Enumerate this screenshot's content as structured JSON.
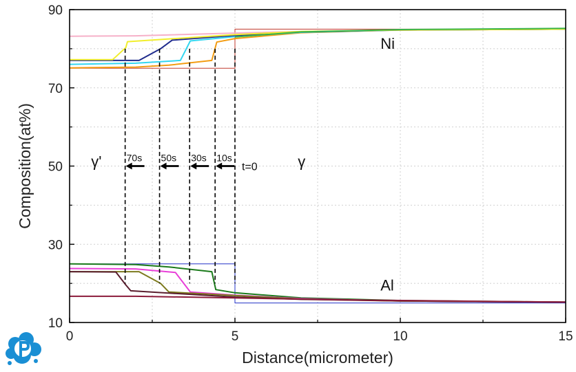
{
  "chart_data": {
    "type": "line",
    "title": "",
    "xlabel": "Distance(micrometer)",
    "ylabel": "Composition(at%)",
    "xlim": [
      0,
      15
    ],
    "ylim": [
      10,
      90
    ],
    "xticks": [
      0,
      5,
      10,
      15
    ],
    "yticks": [
      10,
      30,
      50,
      70,
      90
    ],
    "grid": true,
    "logo_colors": {
      "primary": "#1a8fd4"
    },
    "series": [
      {
        "group": "Ni",
        "time": "t=0",
        "color": "#c0392b",
        "style": "step",
        "points": [
          [
            0,
            75
          ],
          [
            5,
            75
          ],
          [
            5,
            85
          ],
          [
            15,
            85
          ]
        ]
      },
      {
        "group": "Ni",
        "time": "t=0",
        "color": "#f6b0c8",
        "style": "line",
        "points": [
          [
            0,
            83.2
          ],
          [
            2,
            83.3
          ],
          [
            5,
            84.0
          ],
          [
            8,
            84.6
          ],
          [
            15,
            85
          ]
        ]
      },
      {
        "group": "Ni",
        "time": "10s",
        "color": "#f39c12",
        "points": [
          [
            0,
            75.1
          ],
          [
            2,
            75.3
          ],
          [
            3,
            75.8
          ],
          [
            4.3,
            77.0
          ],
          [
            4.45,
            81.7
          ],
          [
            5,
            82.6
          ],
          [
            7,
            84.1
          ],
          [
            10,
            84.8
          ],
          [
            15,
            85
          ]
        ]
      },
      {
        "group": "Ni",
        "time": "30s",
        "color": "#33d6f0",
        "points": [
          [
            0,
            76.0
          ],
          [
            2,
            76.3
          ],
          [
            3.35,
            77.0
          ],
          [
            3.65,
            82.0
          ],
          [
            5,
            83.1
          ],
          [
            7,
            84.2
          ],
          [
            10,
            84.8
          ],
          [
            15,
            85
          ]
        ]
      },
      {
        "group": "Ni",
        "time": "50s",
        "color": "#1f2b8c",
        "points": [
          [
            0,
            77.0
          ],
          [
            2.1,
            77.0
          ],
          [
            2.75,
            80.0
          ],
          [
            3.1,
            82.2
          ],
          [
            5,
            83.4
          ],
          [
            7,
            84.3
          ],
          [
            10,
            84.8
          ],
          [
            15,
            85
          ]
        ]
      },
      {
        "group": "Ni",
        "time": "70s",
        "color": "#f1ee2b",
        "points": [
          [
            0,
            77.2
          ],
          [
            1.3,
            77.2
          ],
          [
            1.7,
            80.3
          ],
          [
            1.75,
            81.8
          ],
          [
            5,
            83.6
          ],
          [
            7,
            84.4
          ],
          [
            10,
            84.8
          ],
          [
            15,
            85
          ]
        ]
      },
      {
        "group": "Ni",
        "time": "",
        "color": "#39b34a",
        "points": [
          [
            5,
            83.0
          ],
          [
            7,
            84.3
          ],
          [
            10,
            84.9
          ],
          [
            15,
            85.2
          ]
        ]
      },
      {
        "group": "Al",
        "time": "t=0",
        "color": "#2230c8",
        "style": "step",
        "points": [
          [
            0,
            25
          ],
          [
            5,
            25
          ],
          [
            5,
            15
          ],
          [
            15,
            15
          ]
        ]
      },
      {
        "group": "Al",
        "time": "10s",
        "color": "#1a7a1a",
        "points": [
          [
            0,
            25.0
          ],
          [
            2,
            24.8
          ],
          [
            3,
            24.2
          ],
          [
            4.3,
            23.0
          ],
          [
            4.42,
            18.4
          ],
          [
            5,
            17.6
          ],
          [
            7,
            16.3
          ],
          [
            10,
            15.6
          ],
          [
            15,
            15.2
          ]
        ]
      },
      {
        "group": "Al",
        "time": "30s",
        "color": "#e83fd8",
        "points": [
          [
            0,
            23.8
          ],
          [
            2,
            23.7
          ],
          [
            3.2,
            22.8
          ],
          [
            3.65,
            17.8
          ],
          [
            5,
            17.0
          ],
          [
            7,
            16.1
          ],
          [
            10,
            15.5
          ],
          [
            15,
            15.2
          ]
        ]
      },
      {
        "group": "Al",
        "time": "50s",
        "color": "#7d7a1e",
        "points": [
          [
            0,
            23.0
          ],
          [
            2.1,
            23.0
          ],
          [
            2.75,
            20.0
          ],
          [
            3.0,
            17.8
          ],
          [
            5,
            16.9
          ],
          [
            7,
            16.0
          ],
          [
            10,
            15.5
          ],
          [
            15,
            15.2
          ]
        ]
      },
      {
        "group": "Al",
        "time": "70s",
        "color": "#5a1e2e",
        "points": [
          [
            0,
            23.0
          ],
          [
            1.4,
            22.9
          ],
          [
            1.7,
            19.6
          ],
          [
            1.85,
            18.1
          ],
          [
            5,
            16.5
          ],
          [
            7,
            15.9
          ],
          [
            10,
            15.5
          ],
          [
            15,
            15.2
          ]
        ]
      },
      {
        "group": "Al",
        "time": "",
        "color": "#8b1a3a",
        "points": [
          [
            0,
            16.7
          ],
          [
            2,
            16.7
          ],
          [
            5,
            16.3
          ],
          [
            8,
            15.8
          ],
          [
            15,
            15.2
          ]
        ]
      }
    ],
    "interfaces": [
      {
        "label": "10s",
        "x": 4.4
      },
      {
        "label": "30s",
        "x": 3.63
      },
      {
        "label": "50s",
        "x": 2.72
      },
      {
        "label": "70s",
        "x": 1.68
      }
    ],
    "initial_interface": {
      "label": "t=0",
      "x": 5
    },
    "interface_line_range": [
      20,
      80
    ],
    "arrow_y": 50,
    "annotations": [
      {
        "text": "Ni",
        "x": 9.4,
        "y": 80
      },
      {
        "text": "Al",
        "x": 9.4,
        "y": 18.2
      },
      {
        "text": "γ'",
        "x": 0.65,
        "y": 49.8
      },
      {
        "text": "γ",
        "x": 6.9,
        "y": 49.8
      }
    ]
  }
}
